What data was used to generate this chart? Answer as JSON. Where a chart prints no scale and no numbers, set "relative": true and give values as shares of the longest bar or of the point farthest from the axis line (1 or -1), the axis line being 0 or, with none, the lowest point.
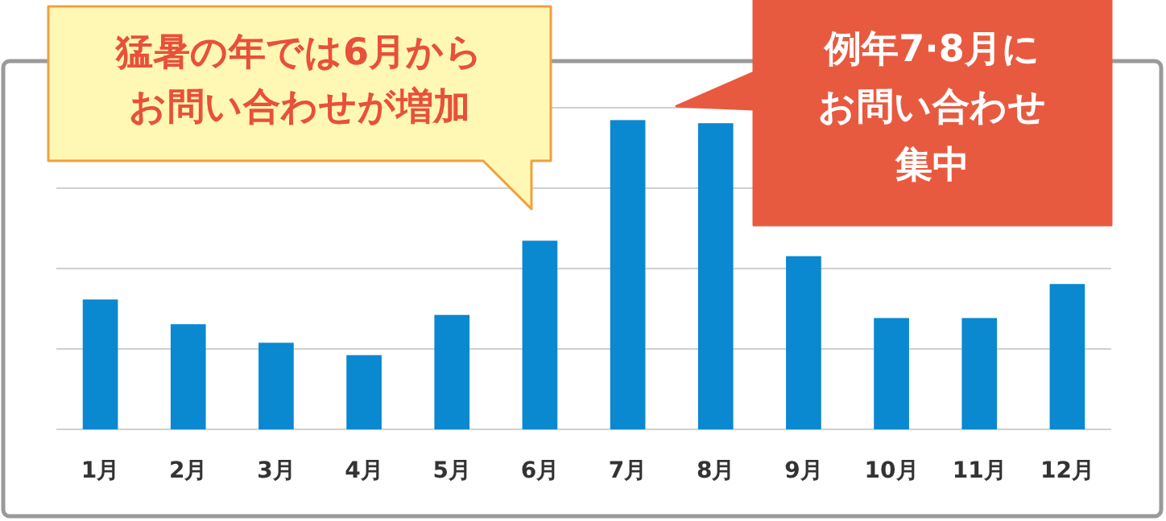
{
  "chart_data": {
    "type": "bar",
    "relative": true,
    "grid": "y",
    "color": "#0a88d0",
    "categories": [
      "1月",
      "2月",
      "3月",
      "4月",
      "5月",
      "6月",
      "7月",
      "8月",
      "9月",
      "10月",
      "11月",
      "12月"
    ],
    "values": [
      0.42,
      0.34,
      0.28,
      0.24,
      0.37,
      0.61,
      1,
      0.99,
      0.56,
      0.36,
      0.36,
      0.47
    ],
    "annotations": [
      "猛暑の年では6月からお問い合わせが増加",
      "例年7·8月にお問い合わせ集中"
    ]
  }
}
